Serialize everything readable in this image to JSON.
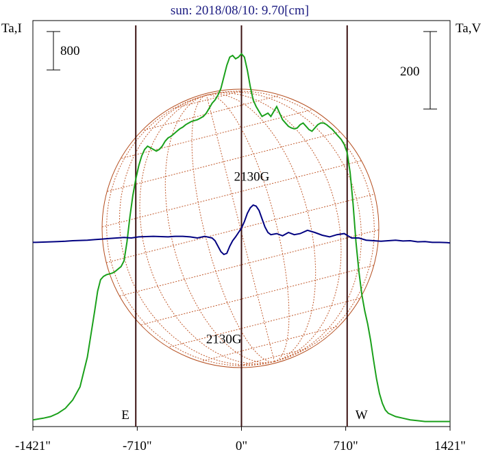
{
  "chart_data": {
    "type": "line",
    "title": "sun: 2018/08/10: 9.70[cm]",
    "ylabel_left": "Ta,I",
    "ylabel_right": "Ta,V",
    "scale_left": "800",
    "scale_right": "200",
    "xticks": [
      {
        "value": -1421,
        "label": "-1421\""
      },
      {
        "value": -710,
        "label": "-710\""
      },
      {
        "value": 0,
        "label": "0\""
      },
      {
        "value": 710,
        "label": "710\""
      },
      {
        "value": 1421,
        "label": "1421\""
      }
    ],
    "xlim": [
      -1421,
      1421
    ],
    "limb_markers": [
      {
        "x": -720,
        "label": "E"
      },
      {
        "x": 720,
        "label": "W"
      }
    ],
    "annotations": [
      {
        "text": "2130G",
        "x": 80,
        "y_frac": 0.31
      },
      {
        "text": "2130G",
        "x": -110,
        "y_frac": 0.71
      }
    ],
    "series": [
      {
        "color": "#1aa01a",
        "x": [
          -1421,
          -1350,
          -1300,
          -1250,
          -1200,
          -1150,
          -1100,
          -1050,
          -1000,
          -980,
          -960,
          -940,
          -920,
          -900,
          -880,
          -860,
          -840,
          -820,
          -800,
          -780,
          -760,
          -740,
          -720,
          -700,
          -680,
          -660,
          -640,
          -620,
          -600,
          -580,
          -560,
          -540,
          -520,
          -500,
          -480,
          -460,
          -440,
          -420,
          -400,
          -380,
          -360,
          -340,
          -320,
          -300,
          -280,
          -260,
          -240,
          -220,
          -200,
          -180,
          -160,
          -140,
          -120,
          -100,
          -80,
          -60,
          -40,
          -20,
          0,
          20,
          40,
          60,
          80,
          100,
          120,
          140,
          160,
          180,
          200,
          220,
          240,
          260,
          280,
          300,
          320,
          340,
          360,
          380,
          400,
          420,
          440,
          460,
          480,
          500,
          520,
          540,
          560,
          580,
          600,
          620,
          640,
          660,
          680,
          700,
          720,
          740,
          760,
          780,
          800,
          820,
          840,
          860,
          880,
          900,
          920,
          940,
          960,
          980,
          1000,
          1050,
          1100,
          1150,
          1200,
          1250,
          1300,
          1350,
          1421
        ],
        "values": [
          0.02,
          0.03,
          0.04,
          0.06,
          0.09,
          0.14,
          0.22,
          0.4,
          0.68,
          0.8,
          0.87,
          0.89,
          0.9,
          0.905,
          0.91,
          0.92,
          0.935,
          0.95,
          0.985,
          1.1,
          1.25,
          1.38,
          1.48,
          1.56,
          1.62,
          1.66,
          1.68,
          1.67,
          1.66,
          1.65,
          1.66,
          1.68,
          1.71,
          1.73,
          1.74,
          1.755,
          1.77,
          1.785,
          1.795,
          1.81,
          1.82,
          1.83,
          1.835,
          1.84,
          1.85,
          1.86,
          1.88,
          1.91,
          1.94,
          1.96,
          1.99,
          2.03,
          2.1,
          2.17,
          2.22,
          2.23,
          2.21,
          2.22,
          2.24,
          2.22,
          2.14,
          2.04,
          1.96,
          1.92,
          1.89,
          1.86,
          1.87,
          1.88,
          1.86,
          1.89,
          1.92,
          1.88,
          1.84,
          1.82,
          1.8,
          1.79,
          1.785,
          1.79,
          1.81,
          1.82,
          1.8,
          1.78,
          1.77,
          1.79,
          1.81,
          1.82,
          1.82,
          1.81,
          1.795,
          1.78,
          1.76,
          1.74,
          1.72,
          1.69,
          1.64,
          1.52,
          1.33,
          1.1,
          0.92,
          0.78,
          0.68,
          0.6,
          0.5,
          0.38,
          0.27,
          0.18,
          0.12,
          0.08,
          0.06,
          0.04,
          0.03,
          0.02,
          0.015,
          0.01,
          0.01,
          0.01,
          0.01
        ],
        "ylim": [
          0,
          2.35
        ]
      },
      {
        "color": "#000080",
        "x": [
          -1421,
          -1400,
          -1350,
          -1300,
          -1250,
          -1200,
          -1150,
          -1100,
          -1050,
          -1000,
          -950,
          -900,
          -850,
          -800,
          -750,
          -700,
          -650,
          -600,
          -550,
          -500,
          -450,
          -400,
          -350,
          -300,
          -250,
          -200,
          -180,
          -160,
          -140,
          -120,
          -100,
          -80,
          -60,
          -40,
          -20,
          0,
          20,
          40,
          60,
          80,
          100,
          120,
          140,
          160,
          180,
          200,
          240,
          280,
          320,
          360,
          400,
          450,
          500,
          550,
          600,
          650,
          700,
          750,
          800,
          850,
          900,
          950,
          1000,
          1050,
          1100,
          1150,
          1200,
          1250,
          1300,
          1350,
          1400,
          1421
        ],
        "values": [
          0.02,
          0.02,
          0.025,
          0.03,
          0.035,
          0.04,
          0.05,
          0.055,
          0.06,
          0.07,
          0.08,
          0.09,
          0.1,
          0.11,
          0.1,
          0.12,
          0.125,
          0.13,
          0.125,
          0.12,
          0.13,
          0.13,
          0.12,
          0.1,
          0.13,
          0.1,
          0.05,
          -0.05,
          -0.15,
          -0.2,
          -0.18,
          -0.05,
          0.05,
          0.12,
          0.2,
          0.28,
          0.4,
          0.55,
          0.65,
          0.7,
          0.68,
          0.6,
          0.45,
          0.3,
          0.2,
          0.16,
          0.18,
          0.14,
          0.2,
          0.16,
          0.18,
          0.24,
          0.2,
          0.15,
          0.12,
          0.16,
          0.18,
          0.1,
          0.1,
          0.06,
          0.05,
          0.04,
          0.05,
          0.06,
          0.045,
          0.05,
          0.03,
          0.035,
          0.02,
          0.02,
          0.015,
          0.01
        ],
        "ylim": [
          -1.1,
          1.1
        ]
      }
    ]
  }
}
